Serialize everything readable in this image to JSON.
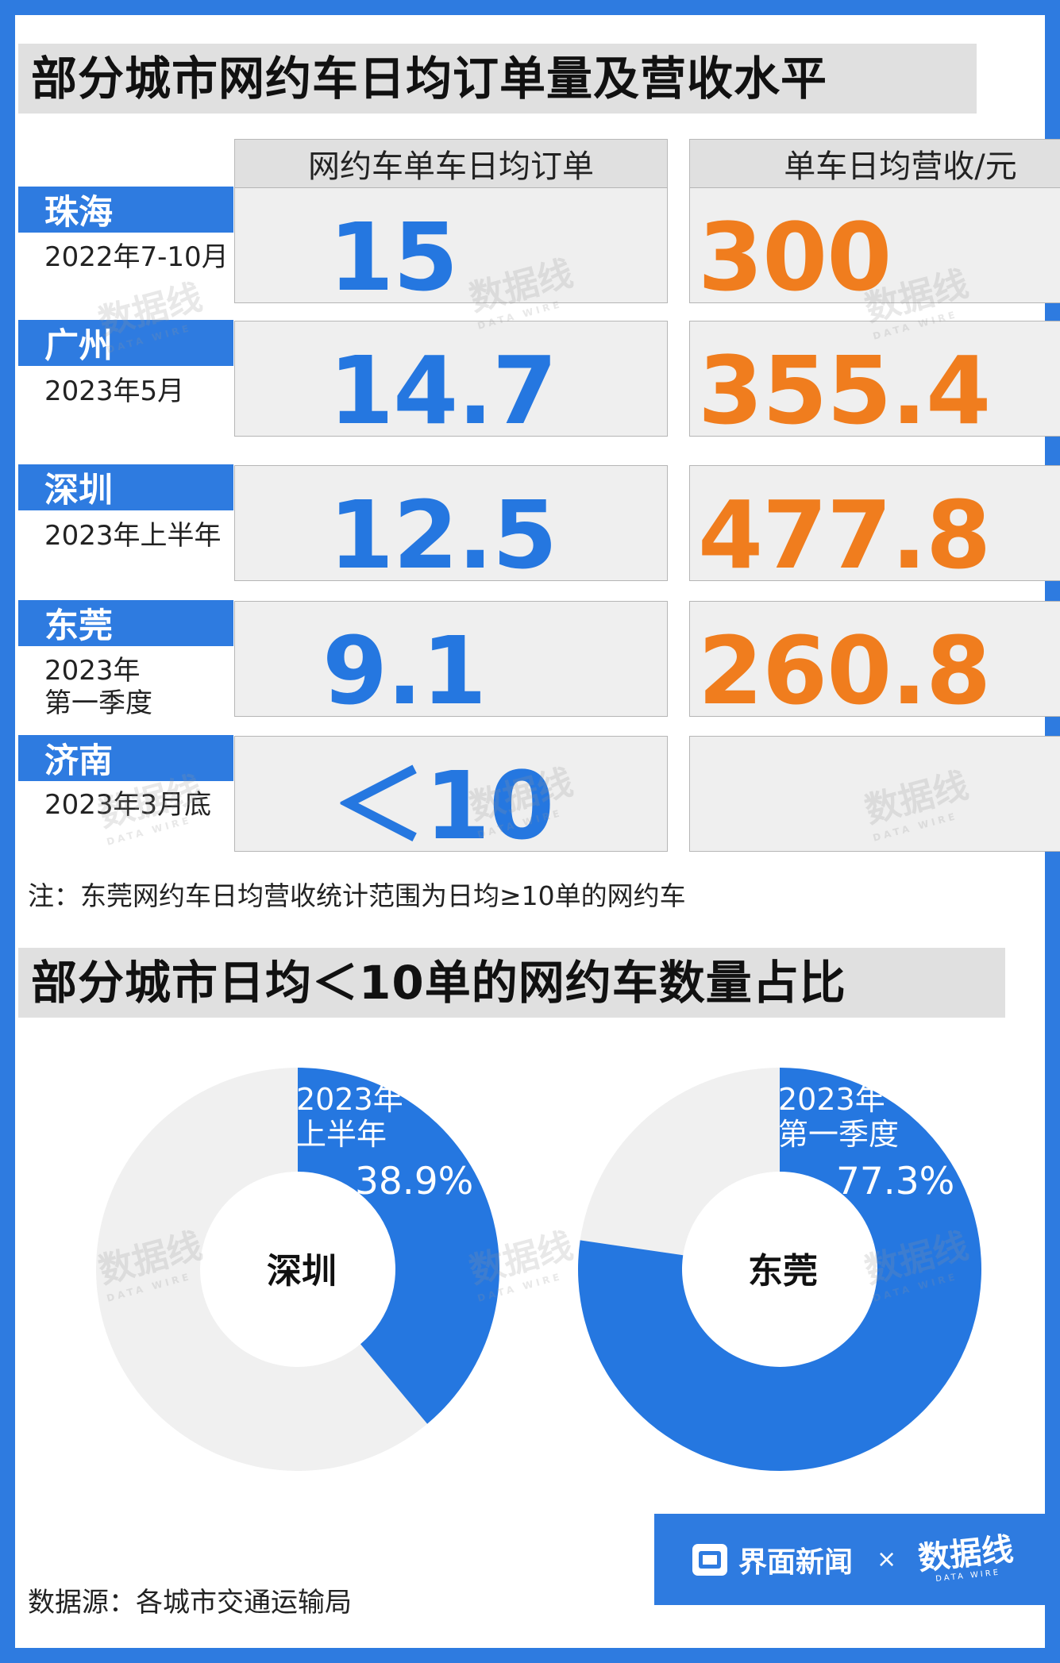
{
  "title1": "部分城市网约车日均订单量及营收水平",
  "title2": "部分城市日均＜10单的网约车数量占比",
  "note": "注：东莞网约车日均营收统计范围为日均≥10单的网约车",
  "source": "数据源：各城市交通运输局",
  "brand": {
    "name": "界面新闻",
    "times": "×",
    "partner": "数据线",
    "partner_sub": "DATA WIRE",
    "colors": {
      "primary_blue": "#2e7be0",
      "value_blue": "#2577e0",
      "value_orange": "#f07d1e",
      "panel_gray": "#efefef",
      "header_gray": "#e0e0e0"
    }
  },
  "chart_data": [
    {
      "type": "table",
      "title": "部分城市网约车日均订单量及营收水平",
      "columns": [
        "网约车单车日均订单",
        "单车日均营收/元"
      ],
      "rows": [
        {
          "city": "珠海",
          "period": "2022年7-10月",
          "orders": "15",
          "revenue": "300"
        },
        {
          "city": "广州",
          "period": "2023年5月",
          "orders": "14.7",
          "revenue": "355.4"
        },
        {
          "city": "深圳",
          "period": "2023年上半年",
          "orders": "12.5",
          "revenue": "477.8"
        },
        {
          "city": "东莞",
          "period": "2023年 第一季度",
          "period_lines": [
            "2023年",
            "第一季度"
          ],
          "orders": "9.1",
          "revenue": "260.8"
        },
        {
          "city": "济南",
          "period": "2023年3月底",
          "orders": "＜10",
          "revenue": ""
        }
      ]
    },
    {
      "type": "pie",
      "title": "部分城市日均＜10单的网约车数量占比",
      "donuts": [
        {
          "city": "深圳",
          "period_lines": [
            "2023年",
            "上半年"
          ],
          "value": 38.9,
          "label": "38.9%",
          "color": "#2577e0",
          "rest_color": "#f0f0f0"
        },
        {
          "city": "东莞",
          "period_lines": [
            "2023年",
            "第一季度"
          ],
          "value": 77.3,
          "label": "77.3%",
          "color": "#2577e0",
          "rest_color": "#f0f0f0"
        }
      ]
    }
  ]
}
